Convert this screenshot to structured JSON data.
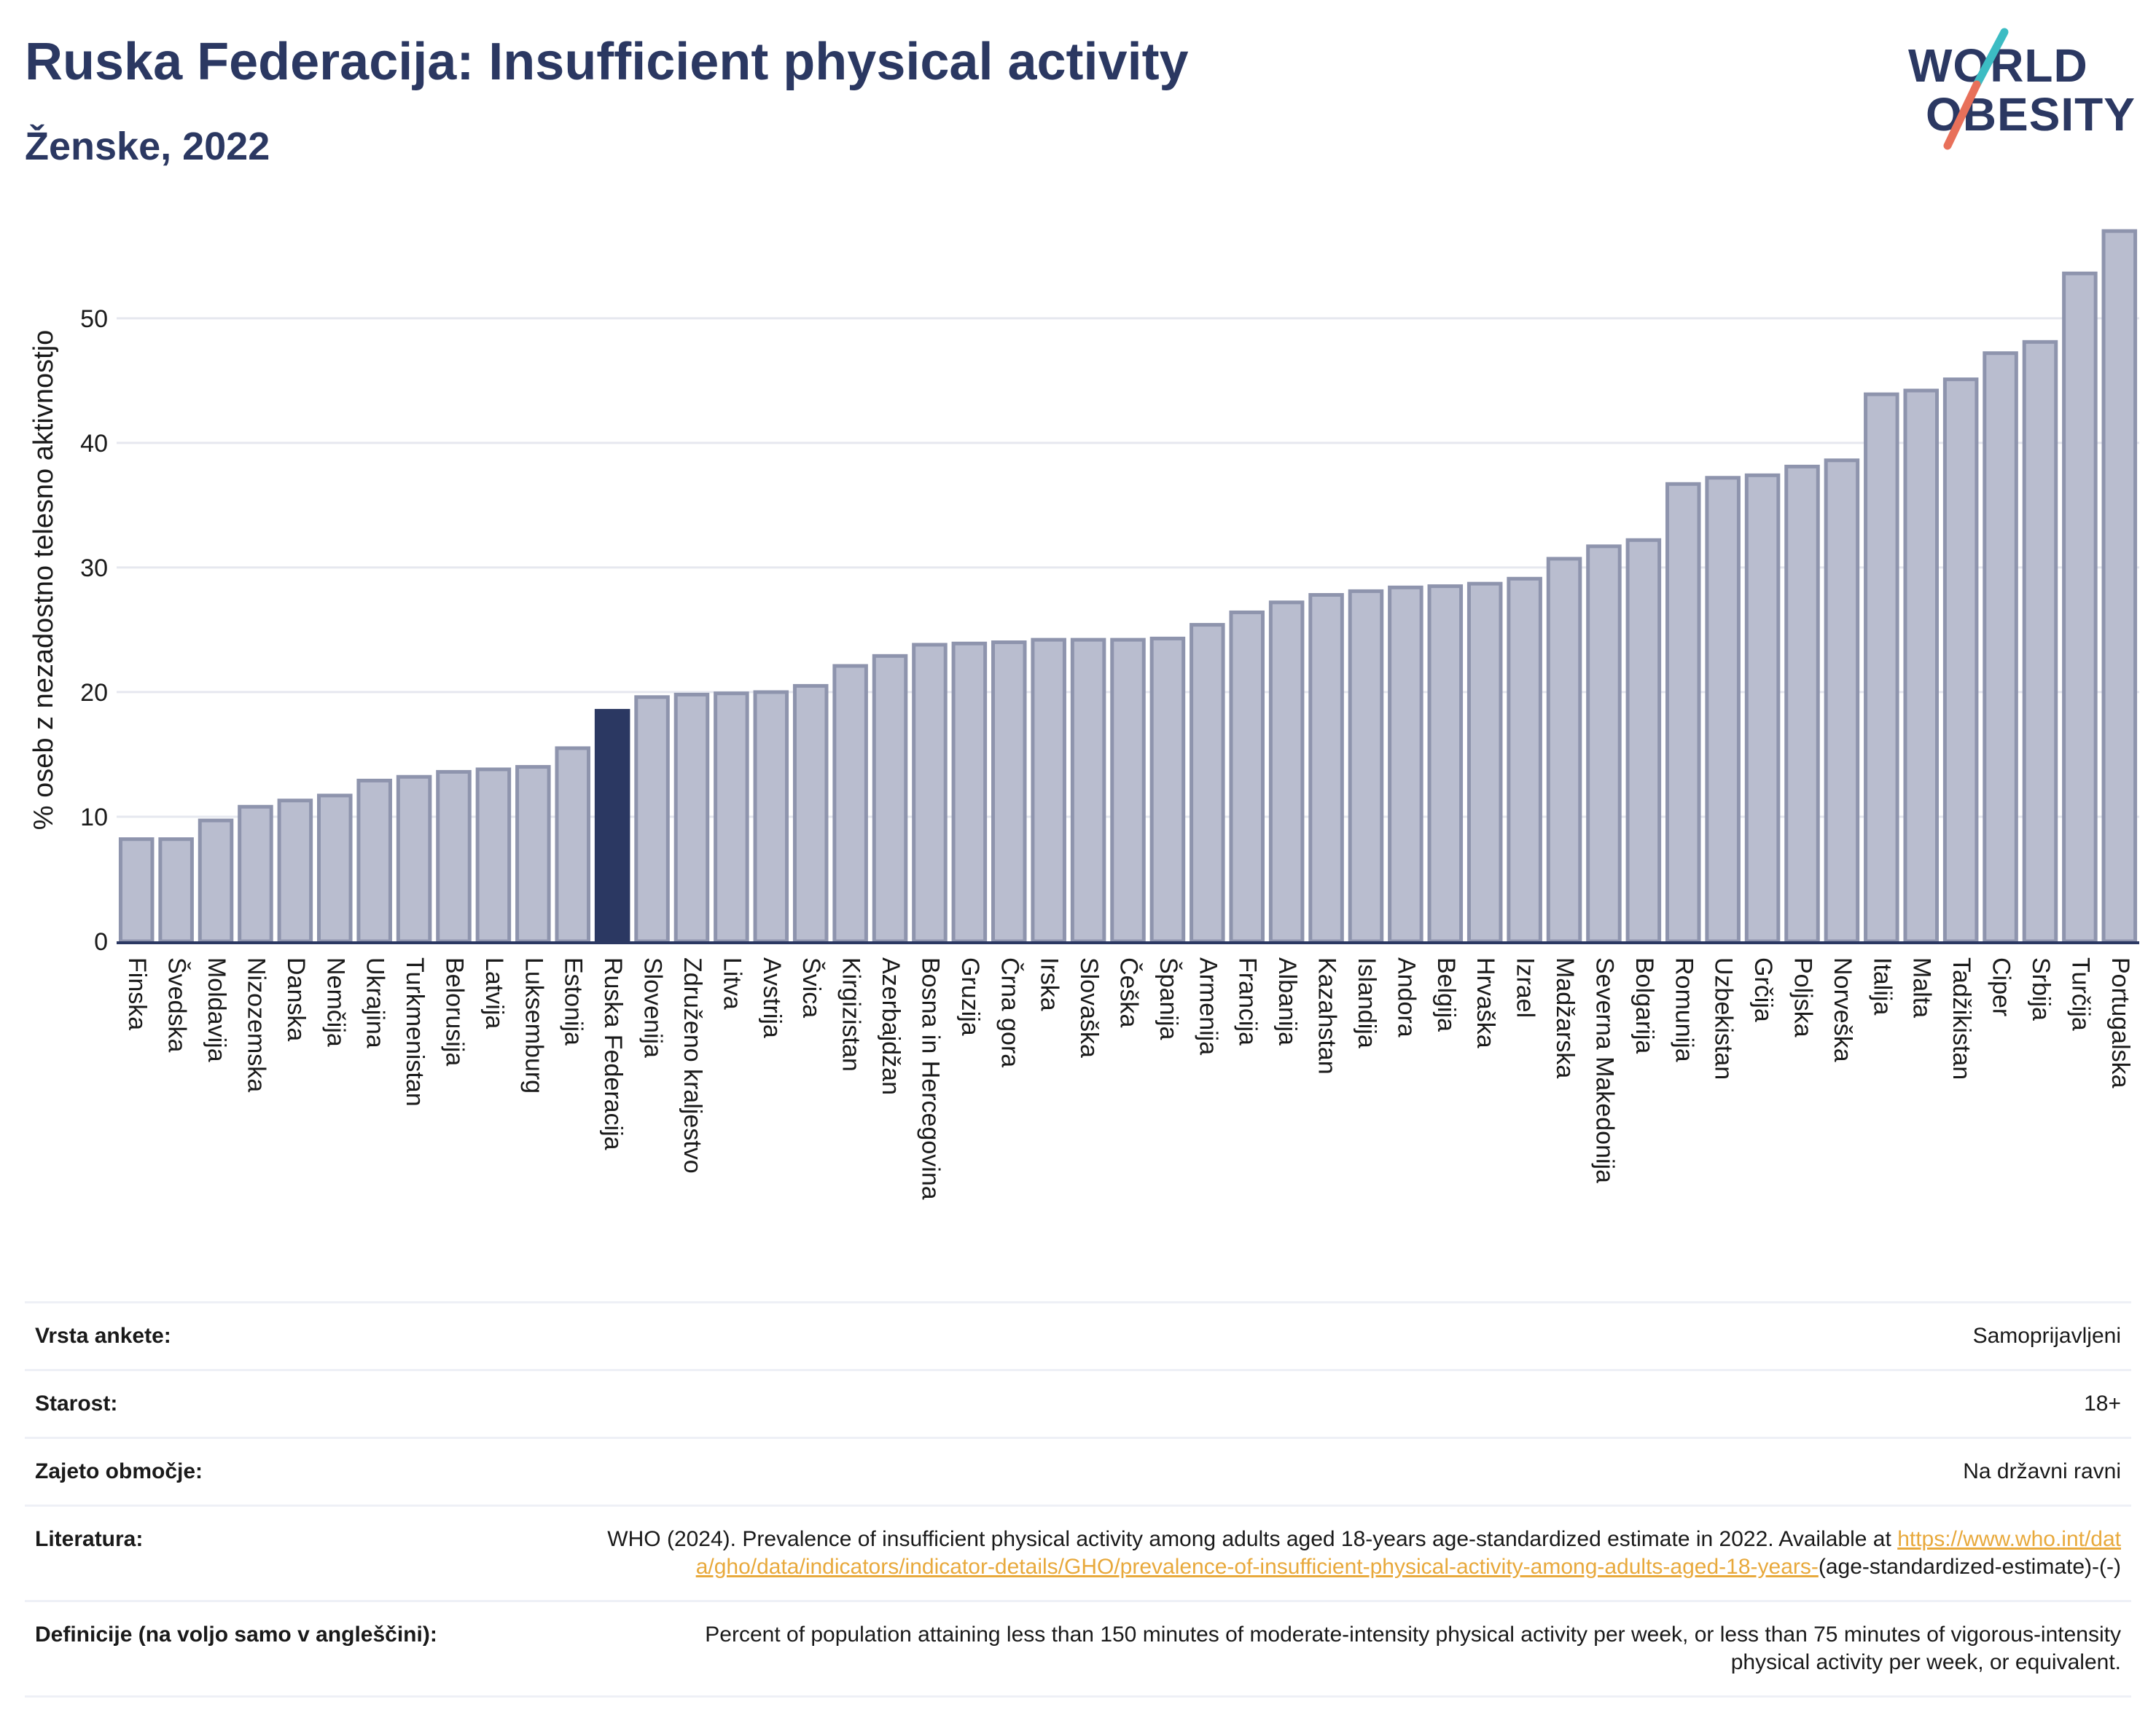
{
  "header": {
    "title": "Ruska Federacija: Insufficient physical activity",
    "subtitle": "Ženske, 2022"
  },
  "logo": {
    "line1": "WORLD",
    "line2": "OBESITY"
  },
  "colors": {
    "highlight": "#2b3862",
    "bar": "#b9bdcf",
    "bar_border": "#8e94ad",
    "axis": "#2b3862",
    "grid": "#e6e8ef",
    "link": "#e8a93c"
  },
  "chart_data": {
    "type": "bar",
    "ylabel": "% oseb z nezadostno telesno aktivnostjo",
    "ylim": [
      0,
      58
    ],
    "yticks": [
      0,
      10,
      20,
      30,
      40,
      50
    ],
    "grid": true,
    "highlight": "Ruska Federacija",
    "categories": [
      "Finska",
      "Švedska",
      "Moldavija",
      "Nizozemska",
      "Danska",
      "Nemčija",
      "Ukrajina",
      "Turkmenistan",
      "Belorusija",
      "Latvija",
      "Luksemburg",
      "Estonija",
      "Ruska Federacija",
      "Slovenija",
      "Združeno kraljestvo",
      "Litva",
      "Avstrija",
      "Švica",
      "Kirgizistan",
      "Azerbajdžan",
      "Bosna in Hercegovina",
      "Gruzija",
      "Črna gora",
      "Irska",
      "Slovaška",
      "Češka",
      "Španija",
      "Armenija",
      "Francija",
      "Albanija",
      "Kazahstan",
      "Islandija",
      "Andora",
      "Belgija",
      "Hrvaška",
      "Izrael",
      "Madžarska",
      "Severna Makedonija",
      "Bolgarija",
      "Romunija",
      "Uzbekistan",
      "Grčija",
      "Poljska",
      "Norveška",
      "Italija",
      "Malta",
      "Tadžikistan",
      "Ciper",
      "Srbija",
      "Turčija",
      "Portugalska"
    ],
    "values": [
      8.2,
      8.2,
      9.7,
      10.8,
      11.3,
      11.7,
      12.9,
      13.2,
      13.6,
      13.8,
      14.0,
      15.5,
      18.5,
      19.6,
      19.8,
      19.9,
      20.0,
      20.5,
      22.1,
      22.9,
      23.8,
      23.9,
      24.0,
      24.2,
      24.2,
      24.2,
      24.3,
      25.4,
      26.4,
      27.2,
      27.8,
      28.1,
      28.4,
      28.5,
      28.7,
      29.1,
      30.7,
      31.7,
      32.2,
      36.7,
      37.2,
      37.4,
      38.1,
      38.6,
      43.9,
      44.2,
      45.1,
      47.2,
      48.1,
      53.6,
      57.0
    ]
  },
  "info": {
    "rows": [
      {
        "label": "Vrsta ankete:",
        "value": "Samoprijavljeni"
      },
      {
        "label": "Starost:",
        "value": "18+"
      },
      {
        "label": "Zajeto območje:",
        "value": "Na državni ravni"
      }
    ],
    "literature": {
      "label": "Literatura:",
      "text": "WHO (2024). Prevalence of insufficient physical activity among adults aged 18-years age-standardized estimate in 2022. Available at",
      "link": "https://www.who.int/data/gho/data/indicators/indicator-details/GHO/prevalence-of-insufficient-physical-activity-among-adults-aged-18-years-",
      "suffix": "(age-standardized-estimate)-(-)"
    },
    "definition": {
      "label": "Definicije (na voljo samo v angleščini):",
      "text": "Percent of population attaining less than 150 minutes of moderate-intensity physical activity per week, or less than 75 minutes of vigorous-intensity physical activity per week, or equivalent."
    }
  }
}
